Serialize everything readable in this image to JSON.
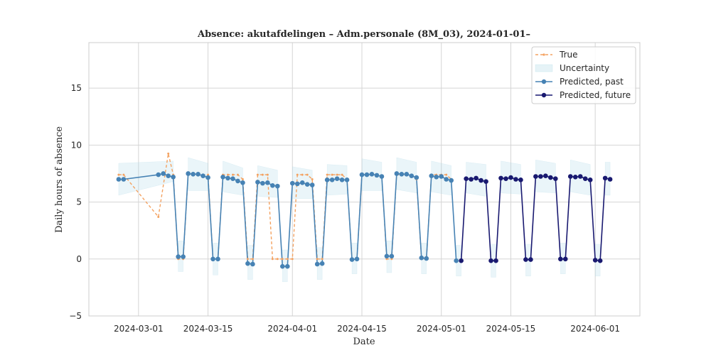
{
  "chart_data": {
    "type": "line",
    "title": "Absence: akutafdelingen – Adm.personale (8M_03), 2024-01-01–",
    "xlabel": "Date",
    "ylabel": "Daily hours of absence",
    "xlim": [
      "2024-02-20",
      "2024-06-10"
    ],
    "ylim": [
      -5,
      19
    ],
    "yticks": [
      -5,
      0,
      5,
      10,
      15
    ],
    "xticks": [
      "2024-03-01",
      "2024-03-15",
      "2024-04-01",
      "2024-04-15",
      "2024-05-01",
      "2024-05-15",
      "2024-06-01"
    ],
    "grid": true,
    "legend_position": "top-right",
    "series": [
      {
        "name": "True",
        "color": "#f4a261",
        "style": "dashed",
        "points": [
          [
            "2024-02-26",
            7.4
          ],
          [
            "2024-02-27",
            7.4
          ],
          [
            "2024-03-05",
            3.7
          ],
          [
            "2024-03-07",
            9.25
          ],
          [
            "2024-03-08",
            7.4
          ],
          [
            "2024-03-09",
            0
          ],
          [
            "2024-03-10",
            0
          ],
          [
            "2024-03-11",
            7.4
          ],
          [
            "2024-03-12",
            7.4
          ],
          [
            "2024-03-13",
            7.4
          ],
          [
            "2024-03-14",
            7.4
          ],
          [
            "2024-03-15",
            7.4
          ],
          [
            "2024-03-16",
            0
          ],
          [
            "2024-03-17",
            0
          ],
          [
            "2024-03-18",
            7.4
          ],
          [
            "2024-03-19",
            7.4
          ],
          [
            "2024-03-20",
            7.4
          ],
          [
            "2024-03-21",
            7.4
          ],
          [
            "2024-03-22",
            7.0
          ],
          [
            "2024-03-23",
            0
          ],
          [
            "2024-03-24",
            0
          ],
          [
            "2024-03-25",
            7.4
          ],
          [
            "2024-03-26",
            7.4
          ],
          [
            "2024-03-27",
            7.4
          ],
          [
            "2024-03-28",
            0
          ],
          [
            "2024-03-29",
            0
          ],
          [
            "2024-03-30",
            0
          ],
          [
            "2024-03-31",
            0
          ],
          [
            "2024-04-01",
            0
          ],
          [
            "2024-04-02",
            7.4
          ],
          [
            "2024-04-03",
            7.4
          ],
          [
            "2024-04-04",
            7.4
          ],
          [
            "2024-04-05",
            7.0
          ],
          [
            "2024-04-06",
            0
          ],
          [
            "2024-04-07",
            0
          ],
          [
            "2024-04-08",
            7.4
          ],
          [
            "2024-04-09",
            7.4
          ],
          [
            "2024-04-10",
            7.4
          ],
          [
            "2024-04-11",
            7.4
          ],
          [
            "2024-04-12",
            7.0
          ],
          [
            "2024-04-13",
            0
          ],
          [
            "2024-04-14",
            0
          ],
          [
            "2024-04-15",
            7.4
          ],
          [
            "2024-04-16",
            7.4
          ],
          [
            "2024-04-17",
            7.4
          ],
          [
            "2024-04-18",
            7.4
          ],
          [
            "2024-04-19",
            7.3
          ],
          [
            "2024-04-20",
            0
          ],
          [
            "2024-04-21",
            0
          ],
          [
            "2024-04-22",
            7.4
          ],
          [
            "2024-04-23",
            7.4
          ],
          [
            "2024-04-24",
            7.4
          ],
          [
            "2024-04-25",
            7.4
          ],
          [
            "2024-04-26",
            7.0
          ],
          [
            "2024-04-27",
            0
          ],
          [
            "2024-04-28",
            0
          ],
          [
            "2024-04-29",
            7.4
          ],
          [
            "2024-04-30",
            7.4
          ],
          [
            "2024-05-01",
            7.4
          ],
          [
            "2024-05-02",
            7.4
          ],
          [
            "2024-05-03",
            7.0
          ]
        ]
      },
      {
        "name": "Uncertainty",
        "color": "#add8e6",
        "type": "band",
        "note_hidden": "",
        "segments": [
          [
            [
              "2024-02-26",
              5.6,
              8.4
            ],
            [
              "2024-03-08",
              6.8,
              8.6
            ]
          ],
          [
            [
              "2024-03-09",
              -1.1,
              1.6
            ],
            [
              "2024-03-10",
              -1.1,
              1.6
            ]
          ],
          [
            [
              "2024-03-11",
              6.0,
              8.9
            ],
            [
              "2024-03-15",
              6.0,
              8.4
            ]
          ],
          [
            [
              "2024-03-16",
              -1.4,
              1.4
            ],
            [
              "2024-03-17",
              -1.4,
              1.4
            ]
          ],
          [
            [
              "2024-03-18",
              5.9,
              8.6
            ],
            [
              "2024-03-22",
              5.6,
              8.0
            ]
          ],
          [
            [
              "2024-03-23",
              -1.8,
              1.2
            ],
            [
              "2024-03-24",
              -1.8,
              1.2
            ]
          ],
          [
            [
              "2024-03-25",
              5.5,
              8.2
            ],
            [
              "2024-03-29",
              5.4,
              7.8
            ]
          ],
          [
            [
              "2024-03-30",
              -2.0,
              0.8
            ],
            [
              "2024-03-31",
              -2.0,
              0.8
            ]
          ],
          [
            [
              "2024-04-01",
              5.3,
              8.1
            ],
            [
              "2024-04-05",
              5.3,
              7.8
            ]
          ],
          [
            [
              "2024-04-06",
              -1.8,
              1.0
            ],
            [
              "2024-04-07",
              -1.8,
              1.0
            ]
          ],
          [
            [
              "2024-04-08",
              5.6,
              8.3
            ],
            [
              "2024-04-12",
              5.7,
              8.2
            ]
          ],
          [
            [
              "2024-04-13",
              -1.3,
              1.4
            ],
            [
              "2024-04-14",
              -1.3,
              1.4
            ]
          ],
          [
            [
              "2024-04-15",
              6.0,
              8.8
            ],
            [
              "2024-04-19",
              6.0,
              8.5
            ]
          ],
          [
            [
              "2024-04-20",
              -1.2,
              1.6
            ],
            [
              "2024-04-21",
              -1.2,
              1.6
            ]
          ],
          [
            [
              "2024-04-22",
              6.1,
              8.9
            ],
            [
              "2024-04-26",
              5.8,
              8.5
            ]
          ],
          [
            [
              "2024-04-27",
              -1.3,
              1.4
            ],
            [
              "2024-04-28",
              -1.3,
              1.4
            ]
          ],
          [
            [
              "2024-04-29",
              5.9,
              8.6
            ],
            [
              "2024-05-03",
              5.6,
              8.2
            ]
          ],
          [
            [
              "2024-05-04",
              -1.5,
              1.2
            ],
            [
              "2024-05-05",
              -1.5,
              1.2
            ]
          ],
          [
            [
              "2024-05-06",
              5.8,
              8.5
            ],
            [
              "2024-05-10",
              5.5,
              8.3
            ]
          ],
          [
            [
              "2024-05-11",
              -1.6,
              1.3
            ],
            [
              "2024-05-12",
              -1.6,
              1.3
            ]
          ],
          [
            [
              "2024-05-13",
              5.8,
              8.6
            ],
            [
              "2024-05-17",
              5.7,
              8.3
            ]
          ],
          [
            [
              "2024-05-18",
              -1.5,
              1.3
            ],
            [
              "2024-05-19",
              -1.5,
              1.3
            ]
          ],
          [
            [
              "2024-05-20",
              5.9,
              8.7
            ],
            [
              "2024-05-24",
              5.8,
              8.4
            ]
          ],
          [
            [
              "2024-05-25",
              -1.3,
              1.4
            ],
            [
              "2024-05-26",
              -1.3,
              1.4
            ]
          ],
          [
            [
              "2024-05-27",
              5.9,
              8.7
            ],
            [
              "2024-05-31",
              5.6,
              8.3
            ]
          ],
          [
            [
              "2024-06-01",
              -1.5,
              1.3
            ],
            [
              "2024-06-02",
              -1.5,
              1.3
            ]
          ],
          [
            [
              "2024-06-03",
              5.6,
              8.5
            ],
            [
              "2024-06-04",
              5.6,
              8.5
            ]
          ]
        ]
      },
      {
        "name": "Predicted, past",
        "color": "#4682b4",
        "style": "solid",
        "marker": "circle",
        "points": [
          [
            "2024-02-26",
            7.0
          ],
          [
            "2024-02-27",
            7.0
          ],
          [
            "2024-03-05",
            7.4
          ],
          [
            "2024-03-06",
            7.5
          ],
          [
            "2024-03-07",
            7.3
          ],
          [
            "2024-03-08",
            7.2
          ],
          [
            "2024-03-09",
            0.2
          ],
          [
            "2024-03-10",
            0.2
          ],
          [
            "2024-03-11",
            7.5
          ],
          [
            "2024-03-12",
            7.45
          ],
          [
            "2024-03-13",
            7.45
          ],
          [
            "2024-03-14",
            7.3
          ],
          [
            "2024-03-15",
            7.15
          ],
          [
            "2024-03-16",
            0.0
          ],
          [
            "2024-03-17",
            0.0
          ],
          [
            "2024-03-18",
            7.2
          ],
          [
            "2024-03-19",
            7.1
          ],
          [
            "2024-03-20",
            7.05
          ],
          [
            "2024-03-21",
            6.85
          ],
          [
            "2024-03-22",
            6.7
          ],
          [
            "2024-03-23",
            -0.4
          ],
          [
            "2024-03-24",
            -0.45
          ],
          [
            "2024-03-25",
            6.75
          ],
          [
            "2024-03-26",
            6.65
          ],
          [
            "2024-03-27",
            6.7
          ],
          [
            "2024-03-28",
            6.45
          ],
          [
            "2024-03-29",
            6.4
          ],
          [
            "2024-03-30",
            -0.65
          ],
          [
            "2024-03-31",
            -0.65
          ],
          [
            "2024-04-01",
            6.65
          ],
          [
            "2024-04-02",
            6.6
          ],
          [
            "2024-04-03",
            6.7
          ],
          [
            "2024-04-04",
            6.55
          ],
          [
            "2024-04-05",
            6.5
          ],
          [
            "2024-04-06",
            -0.45
          ],
          [
            "2024-04-07",
            -0.4
          ],
          [
            "2024-04-08",
            6.95
          ],
          [
            "2024-04-09",
            6.95
          ],
          [
            "2024-04-10",
            7.05
          ],
          [
            "2024-04-11",
            6.95
          ],
          [
            "2024-04-12",
            6.95
          ],
          [
            "2024-04-13",
            -0.05
          ],
          [
            "2024-04-14",
            0.0
          ],
          [
            "2024-04-15",
            7.4
          ],
          [
            "2024-04-16",
            7.4
          ],
          [
            "2024-04-17",
            7.45
          ],
          [
            "2024-04-18",
            7.35
          ],
          [
            "2024-04-19",
            7.25
          ],
          [
            "2024-04-20",
            0.25
          ],
          [
            "2024-04-21",
            0.25
          ],
          [
            "2024-04-22",
            7.5
          ],
          [
            "2024-04-23",
            7.45
          ],
          [
            "2024-04-24",
            7.45
          ],
          [
            "2024-04-25",
            7.3
          ],
          [
            "2024-04-26",
            7.15
          ],
          [
            "2024-04-27",
            0.1
          ],
          [
            "2024-04-28",
            0.05
          ],
          [
            "2024-04-29",
            7.3
          ],
          [
            "2024-04-30",
            7.2
          ],
          [
            "2024-05-01",
            7.25
          ],
          [
            "2024-05-02",
            7.0
          ],
          [
            "2024-05-03",
            6.9
          ],
          [
            "2024-05-04",
            -0.15
          ]
        ]
      },
      {
        "name": "Predicted, future",
        "color": "#191970",
        "style": "solid",
        "marker": "circle",
        "points": [
          [
            "2024-05-05",
            -0.15
          ],
          [
            "2024-05-06",
            7.05
          ],
          [
            "2024-05-07",
            7.0
          ],
          [
            "2024-05-08",
            7.1
          ],
          [
            "2024-05-09",
            6.9
          ],
          [
            "2024-05-10",
            6.8
          ],
          [
            "2024-05-11",
            -0.15
          ],
          [
            "2024-05-12",
            -0.15
          ],
          [
            "2024-05-13",
            7.1
          ],
          [
            "2024-05-14",
            7.05
          ],
          [
            "2024-05-15",
            7.15
          ],
          [
            "2024-05-16",
            7.0
          ],
          [
            "2024-05-17",
            6.95
          ],
          [
            "2024-05-18",
            -0.05
          ],
          [
            "2024-05-19",
            -0.05
          ],
          [
            "2024-05-20",
            7.25
          ],
          [
            "2024-05-21",
            7.25
          ],
          [
            "2024-05-22",
            7.3
          ],
          [
            "2024-05-23",
            7.15
          ],
          [
            "2024-05-24",
            7.05
          ],
          [
            "2024-05-25",
            0.0
          ],
          [
            "2024-05-26",
            0.0
          ],
          [
            "2024-05-27",
            7.25
          ],
          [
            "2024-05-28",
            7.2
          ],
          [
            "2024-05-29",
            7.25
          ],
          [
            "2024-05-30",
            7.05
          ],
          [
            "2024-05-31",
            6.95
          ],
          [
            "2024-06-01",
            -0.1
          ],
          [
            "2024-06-02",
            -0.15
          ],
          [
            "2024-06-03",
            7.1
          ],
          [
            "2024-06-04",
            7.0
          ]
        ]
      }
    ]
  }
}
